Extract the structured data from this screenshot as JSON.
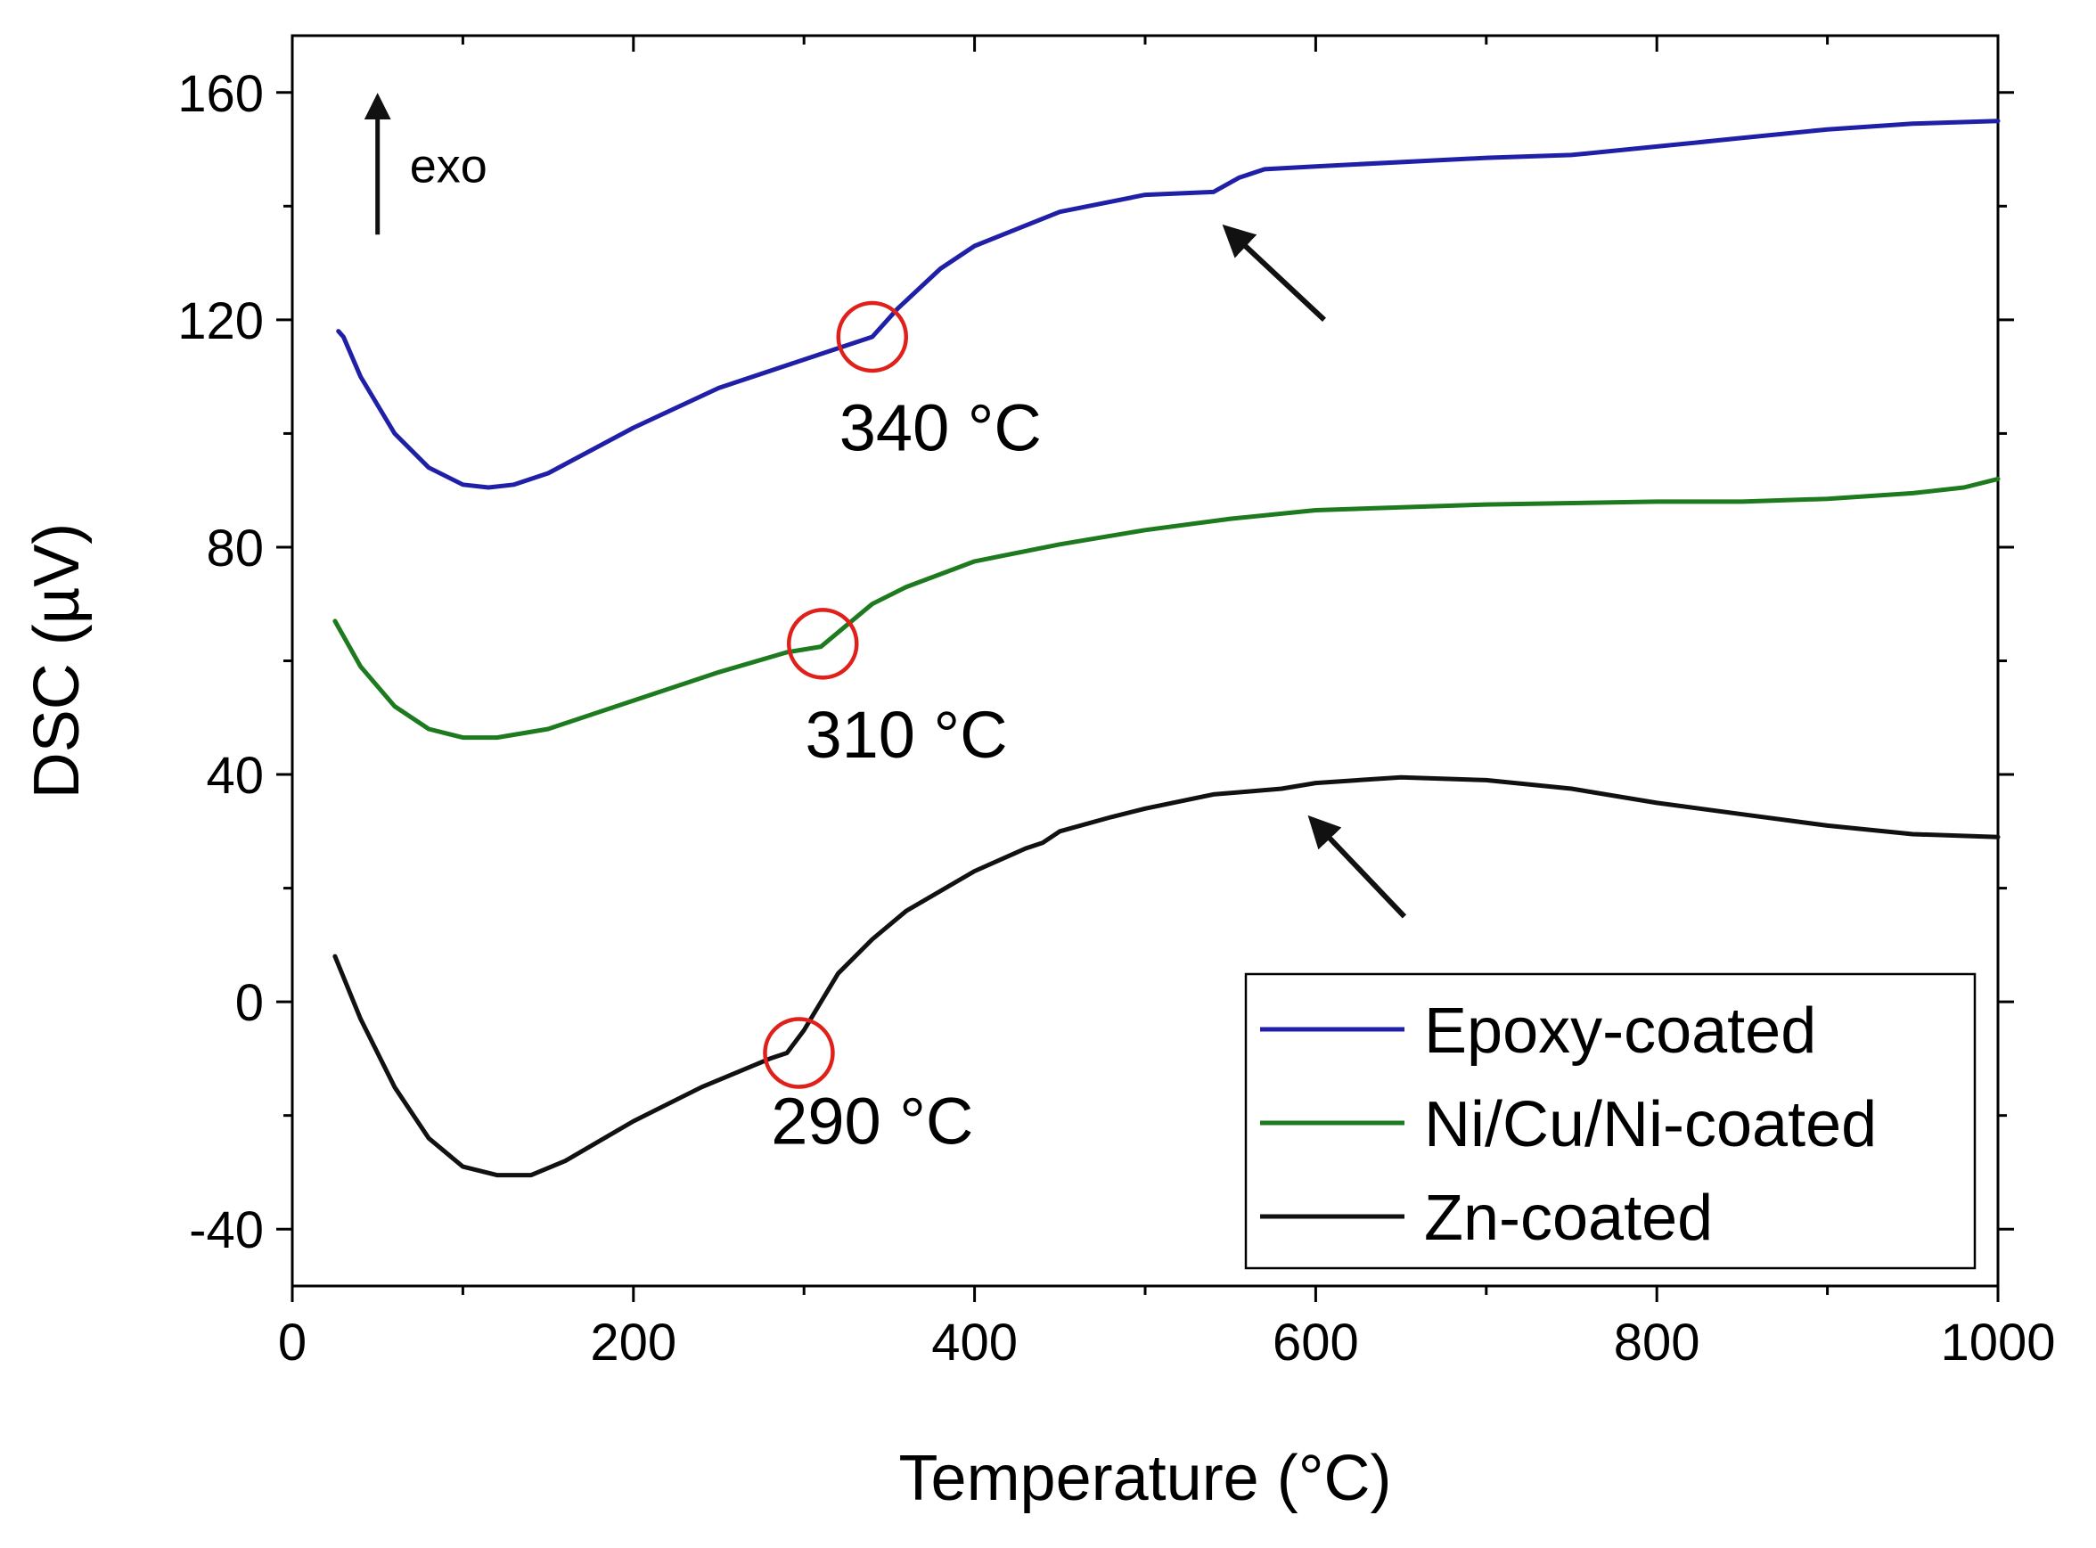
{
  "chart_data": {
    "type": "line",
    "title": "",
    "xlabel": "Temperature (°C)",
    "ylabel": "DSC (µV)",
    "xlim": [
      0,
      1000
    ],
    "ylim": [
      -50,
      170
    ],
    "x_ticks": [
      0,
      200,
      400,
      600,
      800,
      1000
    ],
    "y_ticks": [
      -40,
      0,
      40,
      80,
      120,
      160
    ],
    "x_tick_labels": [
      "0",
      "200",
      "400",
      "600",
      "800",
      "1000"
    ],
    "y_tick_labels": [
      "-40",
      "0",
      "40",
      "80",
      "120",
      "160"
    ],
    "grid": false,
    "legend_position": "bottom-right",
    "series": [
      {
        "name": "Epoxy-coated",
        "color": "#1f1fa8",
        "points": [
          [
            27,
            118
          ],
          [
            30,
            117
          ],
          [
            40,
            110
          ],
          [
            60,
            100
          ],
          [
            80,
            94
          ],
          [
            100,
            91
          ],
          [
            115,
            90.5
          ],
          [
            130,
            91
          ],
          [
            150,
            93
          ],
          [
            200,
            101
          ],
          [
            250,
            108
          ],
          [
            300,
            113
          ],
          [
            330,
            116
          ],
          [
            340,
            117
          ],
          [
            355,
            122
          ],
          [
            380,
            129
          ],
          [
            400,
            133
          ],
          [
            450,
            139
          ],
          [
            500,
            142
          ],
          [
            540,
            142.5
          ],
          [
            555,
            145
          ],
          [
            570,
            146.5
          ],
          [
            600,
            147
          ],
          [
            700,
            148.5
          ],
          [
            750,
            149
          ],
          [
            800,
            150.5
          ],
          [
            850,
            152
          ],
          [
            900,
            153.5
          ],
          [
            950,
            154.5
          ],
          [
            1000,
            155
          ]
        ]
      },
      {
        "name": "Ni/Cu/Ni-coated",
        "color": "#1e7a1e",
        "points": [
          [
            25,
            67
          ],
          [
            40,
            59
          ],
          [
            60,
            52
          ],
          [
            80,
            48
          ],
          [
            100,
            46.5
          ],
          [
            120,
            46.5
          ],
          [
            150,
            48
          ],
          [
            200,
            53
          ],
          [
            250,
            58
          ],
          [
            290,
            61.5
          ],
          [
            310,
            62.5
          ],
          [
            320,
            65
          ],
          [
            340,
            70
          ],
          [
            360,
            73
          ],
          [
            400,
            77.5
          ],
          [
            450,
            80.5
          ],
          [
            500,
            83
          ],
          [
            550,
            85
          ],
          [
            600,
            86.5
          ],
          [
            700,
            87.5
          ],
          [
            800,
            88
          ],
          [
            850,
            88
          ],
          [
            900,
            88.5
          ],
          [
            950,
            89.5
          ],
          [
            980,
            90.5
          ],
          [
            1000,
            92
          ]
        ]
      },
      {
        "name": "Zn-coated",
        "color": "#111111",
        "points": [
          [
            25,
            8
          ],
          [
            40,
            -3
          ],
          [
            60,
            -15
          ],
          [
            80,
            -24
          ],
          [
            100,
            -29
          ],
          [
            120,
            -30.5
          ],
          [
            140,
            -30.5
          ],
          [
            160,
            -28
          ],
          [
            200,
            -21
          ],
          [
            240,
            -15
          ],
          [
            280,
            -10
          ],
          [
            290,
            -9
          ],
          [
            300,
            -5
          ],
          [
            310,
            0
          ],
          [
            320,
            5
          ],
          [
            340,
            11
          ],
          [
            360,
            16
          ],
          [
            400,
            23
          ],
          [
            430,
            27
          ],
          [
            440,
            28
          ],
          [
            450,
            30
          ],
          [
            480,
            32.5
          ],
          [
            500,
            34
          ],
          [
            540,
            36.5
          ],
          [
            560,
            37
          ],
          [
            580,
            37.5
          ],
          [
            600,
            38.5
          ],
          [
            650,
            39.5
          ],
          [
            700,
            39
          ],
          [
            750,
            37.5
          ],
          [
            800,
            35
          ],
          [
            850,
            33
          ],
          [
            900,
            31
          ],
          [
            950,
            29.5
          ],
          [
            1000,
            29
          ]
        ]
      }
    ],
    "annotations": [
      {
        "text": "340 °C",
        "circle_at": [
          340,
          117
        ],
        "label_at": [
          380,
          97
        ]
      },
      {
        "text": "310 °C",
        "circle_at": [
          311,
          63
        ],
        "label_at": [
          360,
          43
        ]
      },
      {
        "text": "290 °C",
        "circle_at": [
          297,
          -9
        ],
        "label_at": [
          340,
          -25
        ]
      }
    ],
    "arrows": [
      {
        "from": [
          605,
          120
        ],
        "to": [
          548,
          136
        ],
        "color": "#111111"
      },
      {
        "from": [
          652,
          15
        ],
        "to": [
          598,
          32
        ],
        "color": "#111111"
      }
    ],
    "exo_indicator": {
      "text": "exo",
      "direction": "up",
      "from": [
        50,
        135
      ],
      "to": [
        50,
        159
      ]
    },
    "annotation_circle_color": "#e0201a"
  }
}
